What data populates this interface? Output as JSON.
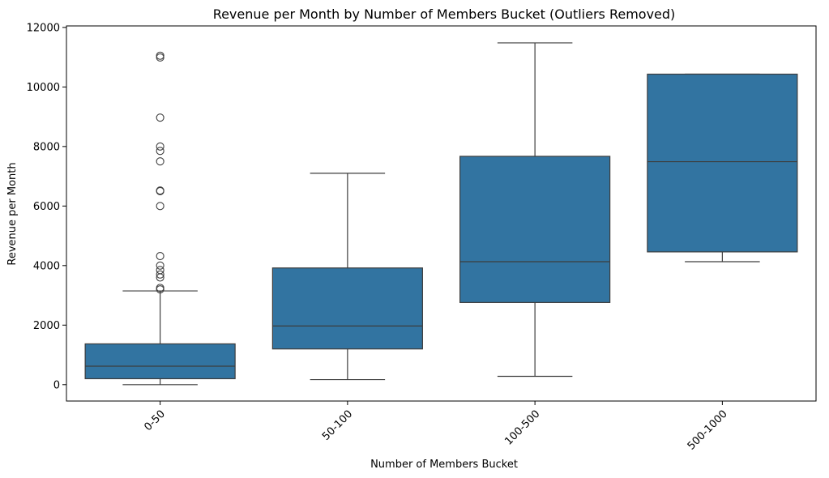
{
  "chart_data": {
    "type": "box",
    "title": "Revenue per Month by Number of Members Bucket (Outliers Removed)",
    "xlabel": "Number of Members Bucket",
    "ylabel": "Revenue per Month",
    "ylim": [
      -550,
      12050
    ],
    "yticks": [
      0,
      2000,
      4000,
      6000,
      8000,
      10000,
      12000
    ],
    "categories": [
      "0-50",
      "50-100",
      "100-500",
      "500-1000"
    ],
    "box_color": "#3274a1",
    "series": [
      {
        "category": "0-50",
        "whisker_low": 0,
        "q1": 200,
        "median": 620,
        "q3": 1370,
        "whisker_high": 3150,
        "outliers": [
          3200,
          3250,
          3600,
          3700,
          3850,
          4000,
          4320,
          6000,
          6500,
          6520,
          7500,
          7850,
          8000,
          8970,
          10990,
          11050
        ]
      },
      {
        "category": "50-100",
        "whisker_low": 170,
        "q1": 1200,
        "median": 1970,
        "q3": 3920,
        "whisker_high": 7100,
        "outliers": []
      },
      {
        "category": "100-500",
        "whisker_low": 280,
        "q1": 2760,
        "median": 4130,
        "q3": 7670,
        "whisker_high": 11480,
        "outliers": []
      },
      {
        "category": "500-1000",
        "whisker_low": 4130,
        "q1": 4460,
        "median": 7490,
        "q3": 10430,
        "whisker_high": 10430,
        "outliers": []
      }
    ]
  }
}
